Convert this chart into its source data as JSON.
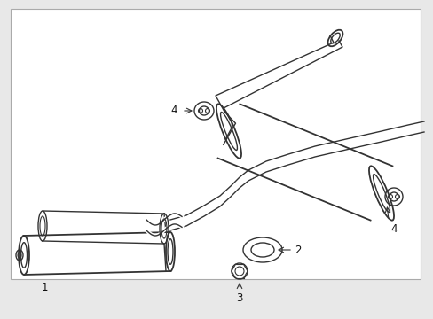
{
  "background_color": "#e8e8e8",
  "box_facecolor": "#ffffff",
  "box_edgecolor": "#aaaaaa",
  "line_color": "#333333",
  "label_color": "#111111",
  "figsize": [
    4.89,
    3.6
  ],
  "dpi": 100,
  "label_fontsize": 8.5,
  "lw_main": 1.0,
  "lw_thick": 1.3,
  "lw_border": 0.8
}
